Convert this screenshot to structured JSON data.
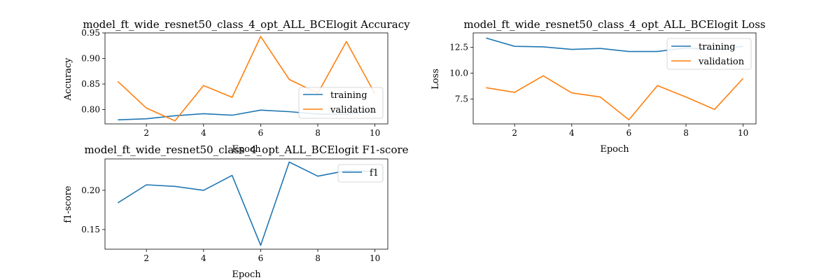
{
  "chart_data": [
    {
      "type": "line",
      "title": "model_ft_wide_resnet50_class_4_opt_ALL_BCElogit Accuracy",
      "xlabel": "Epoch",
      "ylabel": "Accuracy",
      "x": [
        1,
        2,
        3,
        4,
        5,
        6,
        7,
        8,
        9,
        10
      ],
      "xticks": [
        2,
        4,
        6,
        8,
        10
      ],
      "yticks": [
        0.8,
        0.85,
        0.9,
        0.95
      ],
      "ytick_labels": [
        "0.80",
        "0.85",
        "0.90",
        "0.95"
      ],
      "ylim": [
        0.772,
        0.95
      ],
      "legend_position": "lower-right",
      "series": [
        {
          "name": "training",
          "color": "#1f77b4",
          "values": [
            0.78,
            0.782,
            0.788,
            0.792,
            0.789,
            0.799,
            0.796,
            0.791,
            0.791,
            0.797
          ]
        },
        {
          "name": "validation",
          "color": "#ff7f0e",
          "values": [
            0.855,
            0.803,
            0.778,
            0.847,
            0.824,
            0.943,
            0.859,
            0.832,
            0.933,
            0.831
          ]
        }
      ]
    },
    {
      "type": "line",
      "title": "model_ft_wide_resnet50_class_4_opt_ALL_BCElogit Loss",
      "xlabel": "Epoch",
      "ylabel": "Loss",
      "x": [
        1,
        2,
        3,
        4,
        5,
        6,
        7,
        8,
        9,
        10
      ],
      "xticks": [
        2,
        4,
        6,
        8,
        10
      ],
      "yticks": [
        7.5,
        10.0,
        12.5
      ],
      "ytick_labels": [
        "7.5",
        "10.0",
        "12.5"
      ],
      "ylim": [
        5.1,
        13.9
      ],
      "legend_position": "upper-right",
      "series": [
        {
          "name": "training",
          "color": "#1f77b4",
          "values": [
            13.4,
            12.6,
            12.55,
            12.3,
            12.4,
            12.1,
            12.1,
            12.45,
            12.3,
            12.6
          ]
        },
        {
          "name": "validation",
          "color": "#ff7f0e",
          "values": [
            8.6,
            8.15,
            9.75,
            8.1,
            7.7,
            5.5,
            8.8,
            7.7,
            6.5,
            9.5
          ]
        }
      ]
    },
    {
      "type": "line",
      "title": "model_ft_wide_resnet50_class_4_opt_ALL_BCElogit F1-score",
      "xlabel": "Epoch",
      "ylabel": "f1-score",
      "x": [
        1,
        2,
        3,
        4,
        5,
        6,
        7,
        8,
        9,
        10
      ],
      "xticks": [
        2,
        4,
        6,
        8,
        10
      ],
      "yticks": [
        0.15,
        0.2
      ],
      "ytick_labels": [
        "0.15",
        "0.20"
      ],
      "ylim": [
        0.125,
        0.24
      ],
      "legend_position": "upper-right",
      "series": [
        {
          "name": "f1",
          "color": "#1f77b4",
          "values": [
            0.184,
            0.207,
            0.205,
            0.2,
            0.219,
            0.13,
            0.236,
            0.218,
            0.225,
            0.224
          ]
        }
      ]
    }
  ]
}
